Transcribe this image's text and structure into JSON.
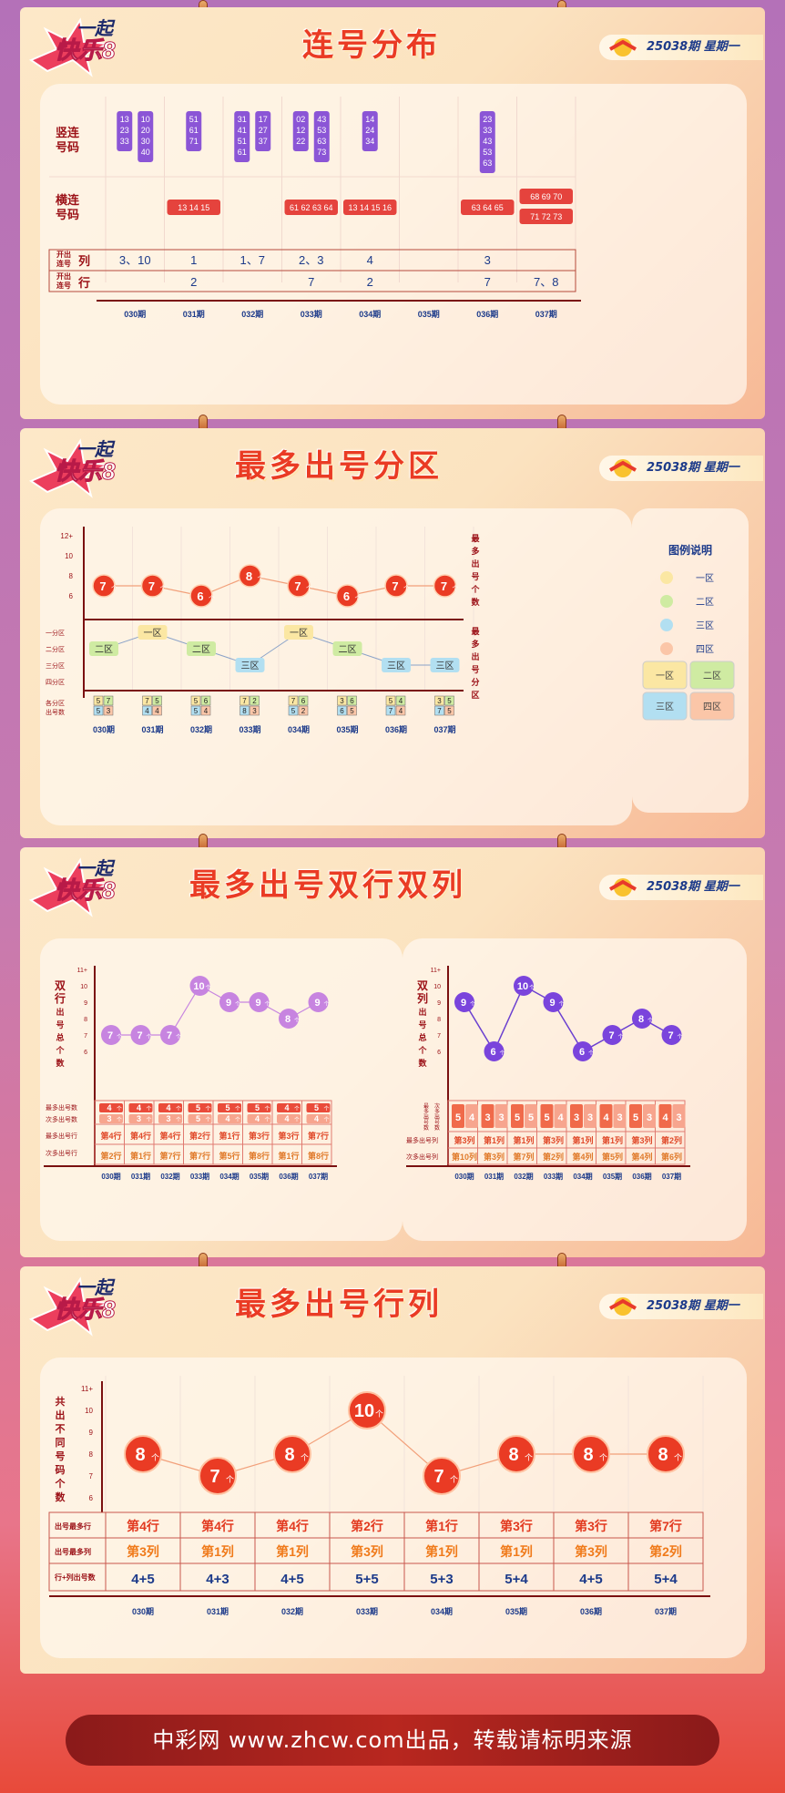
{
  "brand": {
    "logo_text_top": "一起",
    "logo_text_main": "快乐8",
    "badge_text": "快乐8"
  },
  "issue_label": "25038期  星期一",
  "colors": {
    "red": "#ea3b24",
    "purple": "#8b55d6",
    "dark_red": "#9b1016",
    "orange": "#f18a57"
  },
  "periods": [
    "030期",
    "031期",
    "032期",
    "033期",
    "034期",
    "035期",
    "036期",
    "037期"
  ],
  "section1": {
    "title": "连号分布",
    "row_labels": {
      "vertical": "竖连号码",
      "horizontal": "横连号码",
      "col_count_small": "开出连号",
      "col_count_big": "列",
      "row_count_small": "开出连号",
      "row_count_big": "行"
    },
    "vertical_groups": [
      [
        [
          "13",
          "23",
          "33"
        ],
        [
          "10",
          "20",
          "30",
          "40"
        ]
      ],
      [
        [
          "51",
          "61",
          "71"
        ]
      ],
      [
        [
          "31",
          "41",
          "51",
          "61"
        ],
        [
          "17",
          "27",
          "37"
        ]
      ],
      [
        [
          "02",
          "12",
          "22"
        ],
        [
          "43",
          "53",
          "63",
          "73"
        ]
      ],
      [
        [
          "14",
          "24",
          "34"
        ]
      ],
      [],
      [
        [
          "23",
          "33",
          "43",
          "53",
          "63"
        ]
      ],
      []
    ],
    "horizontal_groups": [
      [],
      [
        "13 14 15"
      ],
      [],
      [
        "61 62 63 64"
      ],
      [
        "13 14 15 16"
      ],
      [],
      [
        "63 64 65"
      ],
      [
        "68 69 70",
        "71 72 73"
      ]
    ],
    "col_counts": [
      "3、10",
      "1",
      "1、7",
      "2、3",
      "4",
      "",
      "3",
      ""
    ],
    "row_counts": [
      "",
      "2",
      "",
      "7",
      "2",
      "",
      "7",
      "7、8"
    ]
  },
  "section2": {
    "title": "最多出号分区",
    "y_axis_label": "最多出号个数",
    "zone_axis_label": "最多出号分区",
    "y_ticks": [
      "12+",
      "10",
      "8",
      "6"
    ],
    "zone_ticks": [
      "一分区",
      "二分区",
      "三分区",
      "四分区"
    ],
    "count_row_label": "各分区出号数",
    "bubble_unit": "个",
    "zone_counts": [
      [
        "5",
        "7",
        "5",
        "3"
      ],
      [
        "7",
        "5",
        "4",
        "4"
      ],
      [
        "5",
        "6",
        "5",
        "4"
      ],
      [
        "7",
        "2",
        "8",
        "3"
      ],
      [
        "7",
        "6",
        "5",
        "2"
      ],
      [
        "3",
        "6",
        "6",
        "5"
      ],
      [
        "5",
        "4",
        "7",
        "4"
      ],
      [
        "3",
        "5",
        "7",
        "5"
      ]
    ],
    "legend": {
      "title": "图例说明",
      "items": [
        "一区",
        "二区",
        "三区",
        "四区"
      ],
      "box": [
        "一区",
        "二区",
        "三区",
        "四区"
      ]
    }
  },
  "section3": {
    "title": "最多出号双行双列",
    "left": {
      "y_label": "双行出号总个数",
      "y_ticks": [
        "11+",
        "10",
        "9",
        "8",
        "7",
        "6"
      ],
      "count_labels": [
        "最多出号数",
        "次多出号数"
      ],
      "row_labels": [
        "最多出号行",
        "次多出号行"
      ],
      "unit": "个",
      "top_counts": [
        "4",
        "4",
        "4",
        "5",
        "5",
        "5",
        "4",
        "5"
      ],
      "second_counts": [
        "3",
        "3",
        "3",
        "5",
        "4",
        "4",
        "4",
        "4"
      ],
      "most_rows": [
        "第4行",
        "第4行",
        "第4行",
        "第2行",
        "第1行",
        "第3行",
        "第3行",
        "第7行"
      ],
      "second_rows": [
        "第2行",
        "第1行",
        "第7行",
        "第7行",
        "第5行",
        "第8行",
        "第1行",
        "第8行"
      ]
    },
    "right": {
      "y_label": "双列出号总个数",
      "y_ticks": [
        "11+",
        "10",
        "9",
        "8",
        "7",
        "6"
      ],
      "count_labels": [
        "最多出号数",
        "次多出号数"
      ],
      "row_labels": [
        "最多出号列",
        "次多出号列"
      ],
      "unit": "个",
      "top_counts": [
        "5",
        "3",
        "5",
        "5",
        "3",
        "4",
        "5",
        "4"
      ],
      "second_counts": [
        "4",
        "3",
        "5",
        "4",
        "3",
        "3",
        "3",
        "3"
      ],
      "most_cols": [
        "第3列",
        "第1列",
        "第1列",
        "第3列",
        "第1列",
        "第1列",
        "第3列",
        "第2列"
      ],
      "second_cols": [
        "第10列",
        "第3列",
        "第7列",
        "第2列",
        "第4列",
        "第5列",
        "第4列",
        "第6列"
      ]
    }
  },
  "section4": {
    "title": "最多出号行列",
    "y_label": "共出不同号码个数",
    "y_ticks": [
      "11+",
      "10",
      "9",
      "8",
      "7",
      "6"
    ],
    "row_labels": [
      "出号最多行",
      "出号最多列",
      "行+列出号数"
    ],
    "unit": "个",
    "most_rows": [
      "第4行",
      "第4行",
      "第4行",
      "第2行",
      "第1行",
      "第3行",
      "第3行",
      "第7行"
    ],
    "most_cols": [
      "第3列",
      "第1列",
      "第1列",
      "第3列",
      "第1列",
      "第1列",
      "第3列",
      "第2列"
    ],
    "sums": [
      "4+5",
      "4+3",
      "4+5",
      "5+5",
      "5+3",
      "5+4",
      "4+5",
      "5+4"
    ]
  },
  "chart_data": [
    {
      "type": "line",
      "title": "最多出号分区",
      "categories": [
        "030期",
        "031期",
        "032期",
        "033期",
        "034期",
        "035期",
        "036期",
        "037期"
      ],
      "series": [
        {
          "values": [
            7,
            7,
            6,
            8,
            7,
            6,
            7,
            7
          ]
        }
      ],
      "zones": [
        "二区",
        "一区",
        "二区",
        "三区",
        "一区",
        "二区",
        "三区",
        "三区"
      ],
      "ylabel": "最多出号个数"
    },
    {
      "type": "line",
      "title": "最多出号双行双列",
      "categories": [
        "030期",
        "031期",
        "032期",
        "033期",
        "034期",
        "035期",
        "036期",
        "037期"
      ],
      "series": [
        {
          "values": [
            7,
            7,
            7,
            10,
            9,
            9,
            8,
            9
          ]
        },
        {
          "values": [
            9,
            6,
            10,
            9,
            6,
            7,
            8,
            7
          ]
        }
      ]
    },
    {
      "type": "line",
      "title": "最多出号行列",
      "categories": [
        "030期",
        "031期",
        "032期",
        "033期",
        "034期",
        "035期",
        "036期",
        "037期"
      ],
      "series": [
        {
          "values": [
            8,
            7,
            8,
            10,
            7,
            8,
            8,
            8
          ]
        }
      ],
      "ylabel": "共出不同号码个数"
    }
  ]
}
